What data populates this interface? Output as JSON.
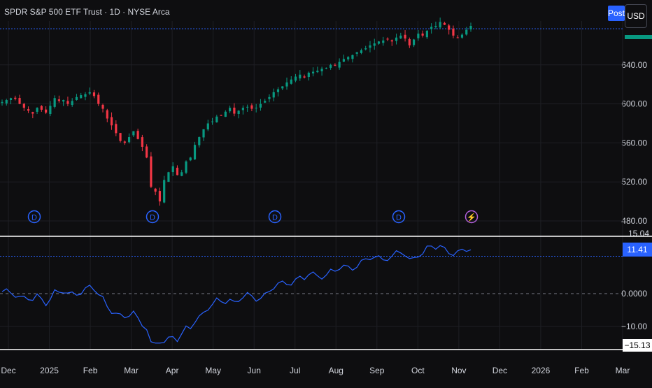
{
  "header": {
    "title": "SPDR S&P 500 ETF Trust · 1D · NYSE Arca",
    "post_label": "Post",
    "currency_label": "USD"
  },
  "colors": {
    "background": "#0e0e10",
    "up": "#089981",
    "down": "#f23645",
    "line": "#2962ff",
    "grid": "#1e1f24",
    "text": "#d1d4dc"
  },
  "chart_data": [
    {
      "type": "candlestick",
      "title": "",
      "x_ticks": [
        "Dec",
        "2025",
        "Feb",
        "Mar",
        "Apr",
        "May",
        "Jun",
        "Jul",
        "Aug",
        "Sep",
        "Oct",
        "Nov",
        "Dec",
        "2026",
        "Feb",
        "Mar"
      ],
      "y_ticks": [
        "640.00",
        "600.00",
        "560.00",
        "520.00",
        "480.00"
      ],
      "ylim": [
        470,
        685
      ],
      "grid": true,
      "reference_line": 677,
      "price_series_close_approx": [
        602,
        604,
        606,
        605,
        600,
        596,
        593,
        590,
        596,
        594,
        591,
        598,
        606,
        603,
        604,
        600,
        603,
        607,
        609,
        610,
        612,
        608,
        600,
        595,
        585,
        578,
        570,
        562,
        560,
        566,
        572,
        564,
        556,
        545,
        515,
        510,
        500,
        522,
        530,
        536,
        527,
        530,
        541,
        545,
        558,
        566,
        574,
        580,
        582,
        587,
        588,
        592,
        596,
        590,
        593,
        596,
        597,
        595,
        596,
        600,
        603,
        607,
        612,
        615,
        618,
        622,
        625,
        628,
        630,
        627,
        632,
        633,
        634,
        636,
        637,
        640,
        639,
        643,
        646,
        648,
        650,
        653,
        655,
        657,
        660,
        662,
        664,
        665,
        666,
        664,
        668,
        670,
        667,
        660,
        666,
        672,
        670,
        675,
        679,
        680,
        684,
        681,
        676,
        670,
        668,
        671,
        676,
        680
      ],
      "event_markers": [
        "D",
        "D",
        "D",
        "D",
        "⚡"
      ]
    },
    {
      "type": "line",
      "title": "",
      "y_ticks": [
        "0.0000",
        "−10.00"
      ],
      "upper_label": "15.04",
      "current_value": "11.41",
      "lower_label": "−15.13",
      "ylim": [
        -16,
        16
      ]
    }
  ]
}
